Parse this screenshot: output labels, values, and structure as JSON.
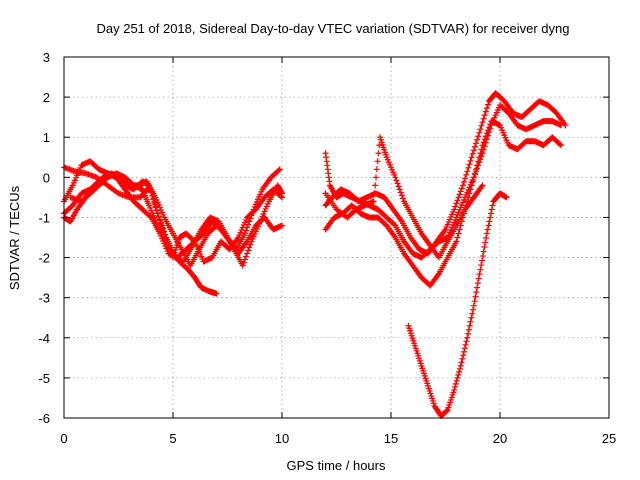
{
  "chart_data": {
    "type": "scatter",
    "title": "Day 251 of 2018, Sidereal Day-to-day VTEC variation (SDTVAR) for receiver dyng",
    "xlabel": "GPS time / hours",
    "ylabel": "SDTVAR / TECUs",
    "xlim": [
      0,
      25
    ],
    "ylim": [
      -6,
      3
    ],
    "x_ticks": [
      0,
      5,
      10,
      15,
      20,
      25
    ],
    "y_ticks": [
      -6,
      -5,
      -4,
      -3,
      -2,
      -1,
      0,
      1,
      2,
      3
    ],
    "x_tick_labels": [
      "0",
      "5",
      "10",
      "15",
      "20",
      "25"
    ],
    "y_tick_labels": [
      "-6",
      "-5",
      "-4",
      "-3",
      "-2",
      "-1",
      "0",
      "1",
      "2",
      "3"
    ],
    "grid": true,
    "marker": "+",
    "marker_color": "#ff0000",
    "series": [
      {
        "points": [
          [
            0.0,
            0.25
          ],
          [
            0.5,
            0.15
          ],
          [
            1.0,
            0.1
          ],
          [
            1.5,
            0.0
          ],
          [
            2.0,
            -0.2
          ],
          [
            2.5,
            -0.4
          ],
          [
            3.0,
            -0.5
          ],
          [
            3.5,
            -0.5
          ],
          [
            3.8,
            -0.3
          ],
          [
            4.0,
            -0.3
          ],
          [
            4.3,
            -0.9
          ],
          [
            4.7,
            -1.5
          ],
          [
            5.0,
            -1.9
          ],
          [
            5.3,
            -2.1
          ],
          [
            5.7,
            -2.3
          ],
          [
            6.0,
            -2.5
          ],
          [
            6.3,
            -2.75
          ],
          [
            6.7,
            -2.85
          ],
          [
            7.0,
            -2.9
          ]
        ]
      },
      {
        "points": [
          [
            0.0,
            -0.6
          ],
          [
            0.4,
            -0.2
          ],
          [
            0.8,
            0.3
          ],
          [
            1.2,
            0.4
          ],
          [
            1.6,
            0.2
          ],
          [
            2.0,
            0.1
          ],
          [
            2.4,
            0.0
          ],
          [
            2.8,
            -0.2
          ],
          [
            3.2,
            -0.3
          ],
          [
            3.6,
            -0.1
          ],
          [
            3.9,
            -0.2
          ],
          [
            4.3,
            -0.9
          ],
          [
            4.7,
            -1.6
          ],
          [
            5.0,
            -2.0
          ],
          [
            5.3,
            -1.5
          ],
          [
            5.6,
            -1.4
          ],
          [
            6.0,
            -1.6
          ],
          [
            6.4,
            -2.1
          ],
          [
            6.8,
            -2.0
          ],
          [
            7.2,
            -1.6
          ],
          [
            7.6,
            -1.8
          ],
          [
            8.0,
            -1.5
          ],
          [
            8.4,
            -1.0
          ],
          [
            8.8,
            -0.8
          ],
          [
            9.2,
            -0.5
          ],
          [
            9.6,
            -0.3
          ],
          [
            10.0,
            -0.5
          ]
        ]
      },
      {
        "points": [
          [
            0.0,
            -0.9
          ],
          [
            0.4,
            -0.7
          ],
          [
            0.8,
            -0.4
          ],
          [
            1.2,
            -0.3
          ],
          [
            1.6,
            -0.1
          ],
          [
            2.0,
            0.1
          ],
          [
            2.4,
            0.0
          ],
          [
            2.8,
            -0.3
          ],
          [
            3.2,
            -0.6
          ],
          [
            3.6,
            -0.8
          ],
          [
            4.0,
            -1.0
          ],
          [
            4.4,
            -1.4
          ],
          [
            4.8,
            -1.9
          ],
          [
            5.2,
            -2.0
          ],
          [
            5.6,
            -1.8
          ],
          [
            6.0,
            -1.6
          ],
          [
            6.4,
            -1.4
          ],
          [
            6.8,
            -1.1
          ],
          [
            7.2,
            -1.3
          ],
          [
            7.6,
            -1.6
          ],
          [
            8.0,
            -1.9
          ],
          [
            8.4,
            -1.6
          ],
          [
            8.8,
            -1.2
          ],
          [
            9.2,
            -1.0
          ],
          [
            9.6,
            -1.3
          ],
          [
            10.0,
            -1.2
          ]
        ]
      },
      {
        "points": [
          [
            0.0,
            -1.0
          ],
          [
            0.3,
            -1.1
          ],
          [
            0.6,
            -0.8
          ],
          [
            1.0,
            -0.5
          ],
          [
            1.4,
            -0.2
          ],
          [
            1.8,
            0.0
          ],
          [
            2.2,
            0.1
          ],
          [
            2.6,
            -0.1
          ],
          [
            3.0,
            -0.2
          ],
          [
            3.4,
            -0.2
          ],
          [
            3.8,
            -0.1
          ],
          [
            4.2,
            -0.5
          ],
          [
            4.6,
            -1.0
          ],
          [
            5.0,
            -1.4
          ],
          [
            5.4,
            -1.8
          ],
          [
            5.8,
            -2.2
          ],
          [
            6.2,
            -1.8
          ],
          [
            6.6,
            -1.4
          ],
          [
            7.0,
            -1.2
          ],
          [
            7.4,
            -1.4
          ],
          [
            7.8,
            -1.8
          ],
          [
            8.2,
            -2.2
          ],
          [
            8.6,
            -1.6
          ],
          [
            9.0,
            -1.1
          ],
          [
            9.4,
            -0.6
          ],
          [
            9.8,
            -0.2
          ],
          [
            10.0,
            -0.4
          ]
        ]
      },
      {
        "points": [
          [
            0.3,
            -0.5
          ],
          [
            0.8,
            -0.6
          ],
          [
            1.2,
            -0.4
          ],
          [
            1.6,
            -0.2
          ],
          [
            2.0,
            0.0
          ],
          [
            2.4,
            0.1
          ],
          [
            2.8,
            0.0
          ],
          [
            3.2,
            -0.2
          ],
          [
            3.6,
            -0.3
          ],
          [
            3.9,
            -0.7
          ],
          [
            4.3,
            -1.2
          ],
          [
            4.7,
            -1.6
          ],
          [
            5.1,
            -2.0
          ],
          [
            5.5,
            -2.1
          ],
          [
            5.9,
            -1.7
          ],
          [
            6.3,
            -1.3
          ],
          [
            6.7,
            -1.0
          ],
          [
            7.1,
            -1.1
          ],
          [
            7.5,
            -1.5
          ],
          [
            7.9,
            -1.8
          ],
          [
            8.3,
            -1.4
          ],
          [
            8.7,
            -0.8
          ],
          [
            9.1,
            -0.3
          ],
          [
            9.5,
            0.0
          ],
          [
            9.9,
            0.2
          ]
        ]
      },
      {
        "points": [
          [
            12.0,
            0.6
          ],
          [
            12.2,
            -0.2
          ],
          [
            12.5,
            -0.5
          ],
          [
            12.8,
            -0.4
          ],
          [
            13.2,
            -0.5
          ],
          [
            13.6,
            -0.6
          ],
          [
            14.0,
            -0.7
          ],
          [
            14.4,
            -0.8
          ],
          [
            14.8,
            -1.0
          ],
          [
            15.2,
            -1.2
          ],
          [
            15.6,
            -1.6
          ],
          [
            16.0,
            -1.9
          ],
          [
            16.4,
            -2.0
          ],
          [
            16.8,
            -1.8
          ],
          [
            17.2,
            -1.6
          ],
          [
            17.6,
            -1.5
          ],
          [
            18.0,
            -1.0
          ],
          [
            18.4,
            -0.5
          ],
          [
            18.8,
            0.0
          ],
          [
            19.2,
            0.6
          ],
          [
            19.6,
            1.3
          ],
          [
            20.0,
            1.8
          ],
          [
            20.4,
            1.6
          ],
          [
            20.8,
            1.3
          ],
          [
            21.2,
            1.2
          ],
          [
            21.6,
            1.3
          ],
          [
            22.0,
            1.4
          ],
          [
            22.4,
            1.4
          ],
          [
            22.8,
            1.3
          ]
        ]
      },
      {
        "points": [
          [
            12.0,
            -0.7
          ],
          [
            12.3,
            -0.5
          ],
          [
            12.7,
            -0.3
          ],
          [
            13.1,
            -0.4
          ],
          [
            13.5,
            -0.6
          ],
          [
            13.9,
            -0.5
          ],
          [
            14.3,
            -0.4
          ],
          [
            14.7,
            -0.5
          ],
          [
            15.1,
            -0.8
          ],
          [
            15.5,
            -1.1
          ],
          [
            15.9,
            -1.5
          ],
          [
            16.3,
            -1.8
          ],
          [
            16.7,
            -1.9
          ],
          [
            17.1,
            -1.6
          ],
          [
            17.5,
            -1.3
          ],
          [
            17.9,
            -0.8
          ],
          [
            18.3,
            -0.2
          ],
          [
            18.7,
            0.5
          ],
          [
            19.1,
            1.2
          ],
          [
            19.5,
            1.9
          ],
          [
            19.8,
            2.1
          ],
          [
            20.2,
            1.9
          ],
          [
            20.6,
            1.6
          ],
          [
            21.0,
            1.5
          ],
          [
            21.4,
            1.7
          ],
          [
            21.8,
            1.9
          ],
          [
            22.2,
            1.8
          ],
          [
            22.6,
            1.6
          ],
          [
            23.0,
            1.3
          ]
        ]
      },
      {
        "points": [
          [
            12.0,
            -1.3
          ],
          [
            12.4,
            -1.0
          ],
          [
            12.8,
            -0.9
          ],
          [
            13.2,
            -0.7
          ],
          [
            13.6,
            -0.9
          ],
          [
            14.0,
            -1.0
          ],
          [
            14.4,
            -1.0
          ],
          [
            14.8,
            -1.2
          ],
          [
            15.2,
            -1.5
          ],
          [
            15.6,
            -1.9
          ],
          [
            16.0,
            -2.2
          ],
          [
            16.4,
            -2.5
          ],
          [
            16.8,
            -2.7
          ],
          [
            17.2,
            -2.4
          ],
          [
            17.6,
            -2.0
          ],
          [
            18.0,
            -1.6
          ],
          [
            18.4,
            -0.8
          ],
          [
            18.8,
            0.0
          ],
          [
            19.2,
            0.8
          ],
          [
            19.6,
            1.4
          ],
          [
            20.0,
            1.3
          ],
          [
            20.4,
            0.8
          ],
          [
            20.8,
            0.7
          ],
          [
            21.2,
            0.9
          ],
          [
            21.6,
            0.9
          ],
          [
            22.0,
            0.8
          ],
          [
            22.4,
            1.0
          ],
          [
            22.8,
            0.8
          ]
        ]
      },
      {
        "points": [
          [
            12.0,
            -0.4
          ],
          [
            12.5,
            -0.8
          ],
          [
            13.0,
            -1.0
          ],
          [
            13.4,
            -0.8
          ],
          [
            13.8,
            -0.7
          ],
          [
            14.2,
            -0.6
          ],
          [
            14.5,
            1.0
          ],
          [
            14.8,
            0.5
          ],
          [
            15.2,
            0.0
          ],
          [
            15.6,
            -0.6
          ],
          [
            16.0,
            -1.0
          ],
          [
            16.4,
            -1.4
          ],
          [
            16.8,
            -1.7
          ],
          [
            17.2,
            -2.0
          ],
          [
            17.6,
            -1.6
          ],
          [
            18.0,
            -1.2
          ],
          [
            18.4,
            -0.8
          ],
          [
            18.8,
            -0.5
          ],
          [
            19.2,
            -0.2
          ]
        ]
      },
      {
        "points": [
          [
            15.8,
            -3.7
          ],
          [
            16.1,
            -4.2
          ],
          [
            16.4,
            -4.7
          ],
          [
            16.7,
            -5.2
          ],
          [
            17.0,
            -5.7
          ],
          [
            17.3,
            -5.95
          ],
          [
            17.6,
            -5.8
          ],
          [
            17.9,
            -5.3
          ],
          [
            18.2,
            -4.7
          ],
          [
            18.5,
            -4.0
          ],
          [
            18.8,
            -3.2
          ],
          [
            19.1,
            -2.3
          ],
          [
            19.4,
            -1.4
          ],
          [
            19.7,
            -0.6
          ],
          [
            20.0,
            -0.4
          ],
          [
            20.3,
            -0.5
          ]
        ]
      }
    ]
  }
}
